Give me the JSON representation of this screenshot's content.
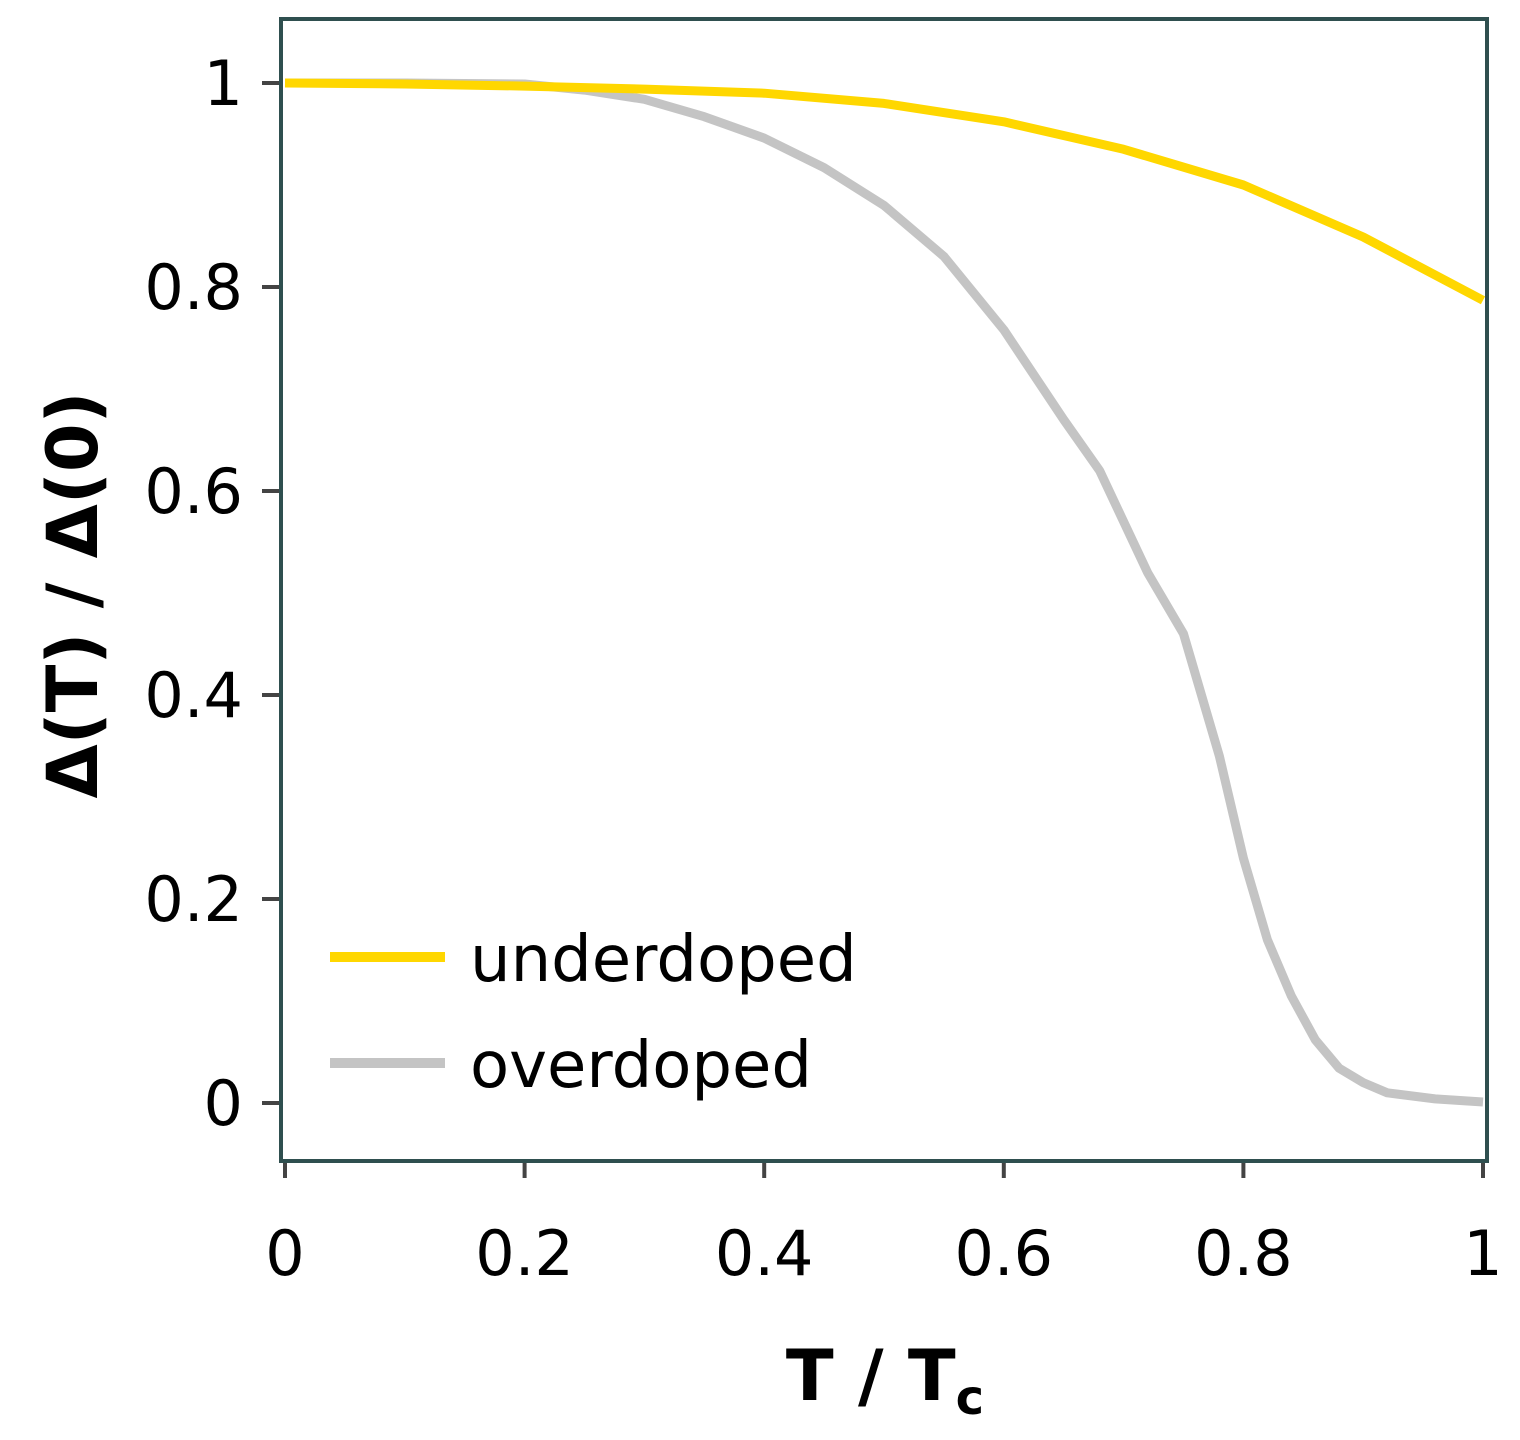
{
  "chart_data": {
    "type": "line",
    "title": "",
    "xlabel": "T / T",
    "xlabel_subscript": "c",
    "ylabel": "Δ(T) / Δ(0)",
    "xlim": [
      0,
      1
    ],
    "ylim": [
      -0.055,
      1.06
    ],
    "xticks": [
      "0",
      "0.2",
      "0.4",
      "0.6",
      "0.8",
      "1"
    ],
    "yticks": [
      "0",
      "0.2",
      "0.4",
      "0.6",
      "0.8",
      "1"
    ],
    "grid": false,
    "legend_position": "bottom-left",
    "series": [
      {
        "name": "underdoped",
        "color": "#FFD700",
        "x": [
          0,
          0.1,
          0.2,
          0.3,
          0.4,
          0.5,
          0.6,
          0.7,
          0.8,
          0.9,
          1.0
        ],
        "y": [
          1.0,
          0.999,
          0.997,
          0.994,
          0.99,
          0.98,
          0.962,
          0.935,
          0.9,
          0.849,
          0.787
        ]
      },
      {
        "name": "overdoped",
        "color": "#C4C4C4",
        "x": [
          0,
          0.1,
          0.2,
          0.25,
          0.3,
          0.35,
          0.4,
          0.45,
          0.5,
          0.55,
          0.6,
          0.65,
          0.68,
          0.72,
          0.75,
          0.78,
          0.8,
          0.82,
          0.84,
          0.86,
          0.88,
          0.9,
          0.92,
          0.96,
          1.0
        ],
        "y": [
          1.0,
          1.0,
          0.999,
          0.993,
          0.984,
          0.967,
          0.946,
          0.917,
          0.88,
          0.83,
          0.758,
          0.67,
          0.62,
          0.52,
          0.46,
          0.34,
          0.24,
          0.16,
          0.105,
          0.062,
          0.034,
          0.02,
          0.01,
          0.004,
          0.001
        ]
      }
    ]
  }
}
